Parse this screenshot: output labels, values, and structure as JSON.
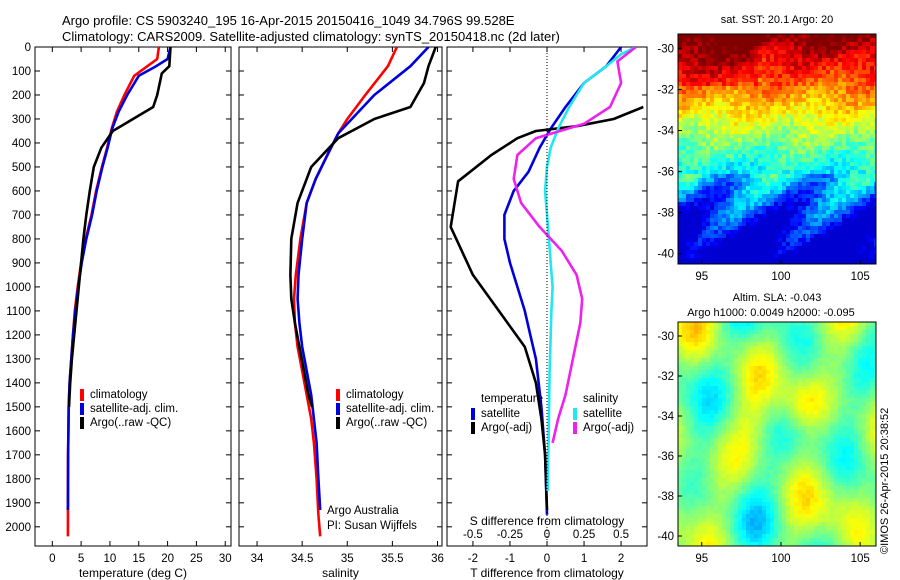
{
  "header": {
    "line1": "Argo profile: CS 5903240_195 16-Apr-2015 20150416_1049 34.796S 99.528E",
    "line2": "Climatology: CARS2009. Satellite-adjusted climatology: synTS_20150418.nc (2d later)"
  },
  "colors": {
    "climatology": "#ff0000",
    "satellite": "#0000dd",
    "argo": "#000000",
    "satellite_salinity": "#22e6f0",
    "argo_salinity": "#ee22ee"
  },
  "chart_data": [
    {
      "type": "line",
      "xlabel": "temperature (deg C)",
      "ylabel": "",
      "xlim": [
        -3,
        31
      ],
      "ylim": [
        2080,
        0
      ],
      "xticks": [
        0,
        5,
        10,
        15,
        20,
        25,
        30
      ],
      "yticks": [
        0,
        100,
        200,
        300,
        400,
        500,
        600,
        700,
        800,
        900,
        1000,
        1100,
        1200,
        1300,
        1400,
        1500,
        1600,
        1700,
        1800,
        1900,
        2000
      ],
      "legend": [
        "climatology",
        "satellite-adj. clim.",
        "Argo(..raw -QC)"
      ],
      "legend_position": "lower-center",
      "series": [
        {
          "name": "climatology",
          "color": "#ff0000",
          "x": [
            18.5,
            18.2,
            16.5,
            14.2,
            12.5,
            11.2,
            10.3,
            9.5,
            8.6,
            7.6,
            6.8,
            5.8,
            5.0,
            4.4,
            3.9,
            3.6,
            3.3,
            3.0,
            2.85,
            2.75,
            2.7
          ],
          "y": [
            0,
            50,
            80,
            120,
            200,
            270,
            340,
            420,
            500,
            600,
            700,
            800,
            900,
            1000,
            1100,
            1200,
            1300,
            1400,
            1500,
            1700,
            2040
          ]
        },
        {
          "name": "satellite-adj. clim.",
          "color": "#0000dd",
          "x": [
            20.5,
            20.0,
            18.0,
            15.0,
            13.0,
            11.5,
            10.4,
            9.6,
            8.7,
            7.7,
            6.9,
            5.9,
            5.1,
            4.5,
            4.0,
            3.6,
            3.3,
            3.0,
            2.85,
            2.75,
            2.7
          ],
          "y": [
            0,
            50,
            80,
            120,
            200,
            270,
            340,
            420,
            500,
            600,
            700,
            800,
            900,
            1000,
            1100,
            1200,
            1300,
            1400,
            1500,
            1700,
            1930
          ]
        },
        {
          "name": "Argo(..raw -QC)",
          "color": "#000000",
          "x": [
            20.5,
            20.3,
            19.0,
            18.2,
            17.5,
            14.0,
            10.5,
            8.5,
            7.2,
            6.5,
            5.9,
            5.4,
            5.0,
            4.6,
            4.2,
            3.8,
            3.4,
            3.1,
            2.9
          ],
          "y": [
            0,
            80,
            110,
            200,
            250,
            300,
            350,
            420,
            500,
            600,
            700,
            800,
            900,
            1000,
            1100,
            1200,
            1300,
            1400,
            1500
          ]
        }
      ]
    },
    {
      "type": "line",
      "xlabel": "salinity",
      "xlim": [
        33.8,
        36.05
      ],
      "ylim": [
        2080,
        0
      ],
      "xticks": [
        34,
        34.5,
        35,
        35.5,
        36
      ],
      "legend": [
        "climatology",
        "satellite-adj. clim.",
        "Argo(..raw -QC)"
      ],
      "legend_position": "lower-right",
      "annotation": [
        "Argo Australia",
        "PI: Susan Wijffels"
      ],
      "series": [
        {
          "name": "climatology",
          "color": "#ff0000",
          "x": [
            35.55,
            35.45,
            35.2,
            35.0,
            34.9,
            34.78,
            34.65,
            34.55,
            34.48,
            34.43,
            34.41,
            34.42,
            34.45,
            34.5,
            34.55,
            34.6,
            34.63,
            34.66,
            34.68,
            34.7
          ],
          "y": [
            0,
            80,
            200,
            300,
            360,
            450,
            550,
            650,
            800,
            950,
            1050,
            1150,
            1250,
            1350,
            1450,
            1550,
            1650,
            1800,
            1950,
            2040
          ]
        },
        {
          "name": "satellite-adj. clim.",
          "color": "#0000dd",
          "x": [
            35.9,
            35.7,
            35.3,
            35.05,
            34.9,
            34.78,
            34.65,
            34.55,
            34.5,
            34.46,
            34.45,
            34.47,
            34.5,
            34.55,
            34.6,
            34.63,
            34.66,
            34.68,
            34.7
          ],
          "y": [
            0,
            80,
            200,
            300,
            360,
            450,
            550,
            650,
            800,
            950,
            1050,
            1150,
            1250,
            1350,
            1450,
            1550,
            1650,
            1800,
            1930
          ]
        },
        {
          "name": "Argo(..raw -QC)",
          "color": "#000000",
          "x": [
            35.98,
            35.9,
            35.85,
            35.7,
            35.3,
            34.9,
            34.6,
            34.45,
            34.38,
            34.37,
            34.38,
            34.42,
            34.47,
            34.52,
            34.57,
            34.61
          ],
          "y": [
            0,
            80,
            150,
            250,
            300,
            380,
            500,
            650,
            800,
            950,
            1050,
            1150,
            1250,
            1350,
            1450,
            1500
          ]
        }
      ]
    },
    {
      "type": "line",
      "xlabel": "T difference from climatology",
      "xlabel_top": "S difference from climatology",
      "xlim": [
        -2.7,
        2.7
      ],
      "ylim": [
        2080,
        0
      ],
      "xticks_bottom": [
        -2,
        -1,
        0,
        1,
        2
      ],
      "xticks_top": [
        -0.5,
        -0.25,
        0,
        0.25,
        0.5
      ],
      "legend_groups": [
        {
          "title": "temperature",
          "items": [
            "satellite",
            "Argo(-adj)"
          ]
        },
        {
          "title": "salinity",
          "items": [
            "satellite",
            "Argo(-adj)"
          ]
        }
      ],
      "series": [
        {
          "name": "temperature satellite",
          "color": "#0000dd",
          "x": [
            2.0,
            1.6,
            1.0,
            0.5,
            0.1,
            -0.2,
            -0.5,
            -0.9,
            -1.15,
            -1.15,
            -1.0,
            -0.8,
            -0.6,
            -0.45,
            -0.3,
            -0.15,
            -0.05,
            0.0
          ],
          "y": [
            0,
            80,
            150,
            250,
            340,
            420,
            520,
            600,
            700,
            800,
            900,
            1000,
            1100,
            1200,
            1300,
            1500,
            1700,
            1950
          ]
        },
        {
          "name": "temperature Argo(-adj)",
          "color": "#000000",
          "x": [
            2.6,
            1.8,
            0.8,
            -0.3,
            -0.8,
            -1.5,
            -2.4,
            -2.6,
            -2.0,
            -1.3,
            -0.6,
            -0.3,
            -0.15,
            -0.05,
            0.0
          ],
          "y": [
            250,
            300,
            330,
            350,
            380,
            450,
            560,
            750,
            950,
            1100,
            1250,
            1400,
            1550,
            1700,
            1930
          ]
        },
        {
          "name": "salinity satellite",
          "color": "#22e6f0",
          "x": [
            2.4,
            2.0,
            1.6,
            1.0,
            0.6,
            0.3,
            0.1,
            0.0,
            -0.05,
            0.0,
            0.05,
            0.1,
            0.15,
            0.12,
            0.1,
            0.07,
            0.05,
            0.02
          ],
          "y": [
            0,
            30,
            80,
            150,
            250,
            340,
            420,
            500,
            600,
            700,
            800,
            900,
            1000,
            1100,
            1200,
            1350,
            1550,
            1850
          ]
        },
        {
          "name": "salinity Argo(-adj)",
          "color": "#ee22ee",
          "x": [
            2.4,
            1.9,
            2.0,
            1.7,
            1.0,
            -0.3,
            -0.8,
            -0.9,
            -0.7,
            -0.2,
            0.4,
            0.8,
            0.95,
            0.9,
            0.7,
            0.5,
            0.3,
            0.15
          ],
          "y": [
            0,
            60,
            150,
            250,
            320,
            380,
            450,
            550,
            650,
            750,
            850,
            950,
            1050,
            1150,
            1300,
            1450,
            1550,
            1650
          ]
        }
      ]
    },
    {
      "type": "heatmap",
      "title": "sat. SST: 20.1 Argo: 20",
      "xticks": [
        95,
        100,
        105
      ],
      "yticks": [
        -30,
        -32,
        -34,
        -36,
        -38,
        -40
      ],
      "xlim": [
        93.5,
        106
      ],
      "ylim": [
        -40.5,
        -29.3
      ]
    },
    {
      "type": "heatmap",
      "title": "Altim. SLA: -0.043",
      "subtitle": "Argo h1000: 0.0049 h2000: -0.095",
      "xticks": [
        95,
        100,
        105
      ],
      "yticks": [
        -30,
        -32,
        -34,
        -36,
        -38,
        -40
      ],
      "xlim": [
        93.5,
        106
      ],
      "ylim": [
        -40.5,
        -29.3
      ]
    }
  ],
  "footer": {
    "stamp": "©IMOS 26-Apr-2015 20:38:52"
  }
}
